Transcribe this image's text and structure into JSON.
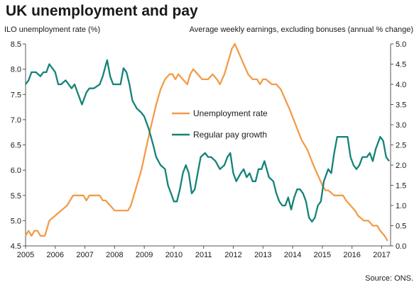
{
  "title": "UK unemployment and pay",
  "source": "Source: ONS.",
  "colors": {
    "unemployment": "#f29c4a",
    "pay": "#138378",
    "axis": "#555555"
  },
  "chart_data": {
    "type": "line",
    "title": "UK unemployment and pay",
    "left_axis": {
      "label": "ILO unemployment rate (%)",
      "range": [
        4.5,
        8.5
      ],
      "ticks": [
        "8.5",
        "8.0",
        "7.5",
        "7.0",
        "6.5",
        "6.0",
        "5.5",
        "5.0",
        "4.5"
      ]
    },
    "right_axis": {
      "label": "Average weekly earnings, excluding bonuses  (annual % change)",
      "range": [
        0.0,
        5.0
      ],
      "ticks": [
        "5.0",
        "4.5",
        "4.0",
        "3.5",
        "3.0",
        "2.5",
        "2.0",
        "1.5",
        "1.0",
        "0.5",
        "0.0"
      ]
    },
    "x_axis": {
      "range": [
        2005,
        2017.3
      ],
      "ticks": [
        "2005",
        "2006",
        "2007",
        "2008",
        "2009",
        "2010",
        "2011",
        "2012",
        "2013",
        "2014",
        "2015",
        "2016",
        "2017"
      ]
    },
    "legend": {
      "placement": "center",
      "entries": [
        "Unemployment rate",
        "Regular pay growth"
      ]
    },
    "grid": false,
    "series": [
      {
        "name": "Unemployment rate",
        "axis": "left",
        "points": [
          [
            2005.0,
            4.7
          ],
          [
            2005.1,
            4.8
          ],
          [
            2005.2,
            4.7
          ],
          [
            2005.3,
            4.8
          ],
          [
            2005.4,
            4.8
          ],
          [
            2005.5,
            4.7
          ],
          [
            2005.65,
            4.7
          ],
          [
            2005.8,
            5.0
          ],
          [
            2006.0,
            5.1
          ],
          [
            2006.2,
            5.2
          ],
          [
            2006.4,
            5.3
          ],
          [
            2006.6,
            5.5
          ],
          [
            2006.8,
            5.5
          ],
          [
            2006.95,
            5.5
          ],
          [
            2007.05,
            5.4
          ],
          [
            2007.15,
            5.5
          ],
          [
            2007.5,
            5.5
          ],
          [
            2007.6,
            5.4
          ],
          [
            2007.7,
            5.4
          ],
          [
            2007.85,
            5.3
          ],
          [
            2008.0,
            5.2
          ],
          [
            2008.3,
            5.2
          ],
          [
            2008.45,
            5.2
          ],
          [
            2008.55,
            5.3
          ],
          [
            2008.7,
            5.6
          ],
          [
            2008.9,
            6.0
          ],
          [
            2009.05,
            6.4
          ],
          [
            2009.2,
            6.8
          ],
          [
            2009.4,
            7.3
          ],
          [
            2009.55,
            7.6
          ],
          [
            2009.7,
            7.8
          ],
          [
            2009.85,
            7.9
          ],
          [
            2009.95,
            7.9
          ],
          [
            2010.05,
            7.8
          ],
          [
            2010.15,
            7.9
          ],
          [
            2010.3,
            7.8
          ],
          [
            2010.45,
            7.7
          ],
          [
            2010.55,
            7.9
          ],
          [
            2010.65,
            8.0
          ],
          [
            2010.8,
            7.9
          ],
          [
            2010.95,
            7.8
          ],
          [
            2011.15,
            7.8
          ],
          [
            2011.3,
            7.9
          ],
          [
            2011.45,
            7.8
          ],
          [
            2011.55,
            7.7
          ],
          [
            2011.7,
            7.9
          ],
          [
            2011.85,
            8.2
          ],
          [
            2011.95,
            8.4
          ],
          [
            2012.05,
            8.5
          ],
          [
            2012.2,
            8.3
          ],
          [
            2012.35,
            8.1
          ],
          [
            2012.5,
            7.9
          ],
          [
            2012.65,
            7.8
          ],
          [
            2012.8,
            7.8
          ],
          [
            2012.9,
            7.7
          ],
          [
            2013.0,
            7.8
          ],
          [
            2013.1,
            7.8
          ],
          [
            2013.3,
            7.7
          ],
          [
            2013.45,
            7.7
          ],
          [
            2013.6,
            7.6
          ],
          [
            2013.75,
            7.4
          ],
          [
            2013.9,
            7.2
          ],
          [
            2014.1,
            6.9
          ],
          [
            2014.3,
            6.6
          ],
          [
            2014.5,
            6.4
          ],
          [
            2014.7,
            6.1
          ],
          [
            2014.85,
            5.9
          ],
          [
            2015.0,
            5.7
          ],
          [
            2015.1,
            5.6
          ],
          [
            2015.2,
            5.6
          ],
          [
            2015.4,
            5.5
          ],
          [
            2015.55,
            5.5
          ],
          [
            2015.7,
            5.5
          ],
          [
            2015.8,
            5.4
          ],
          [
            2015.95,
            5.3
          ],
          [
            2016.1,
            5.2
          ],
          [
            2016.2,
            5.1
          ],
          [
            2016.4,
            5.0
          ],
          [
            2016.55,
            5.0
          ],
          [
            2016.7,
            4.9
          ],
          [
            2016.85,
            4.9
          ],
          [
            2016.95,
            4.8
          ],
          [
            2017.1,
            4.7
          ],
          [
            2017.2,
            4.6
          ]
        ]
      },
      {
        "name": "Regular pay growth",
        "axis": "right",
        "points": [
          [
            2005.0,
            4.0
          ],
          [
            2005.1,
            4.1
          ],
          [
            2005.2,
            4.3
          ],
          [
            2005.35,
            4.3
          ],
          [
            2005.5,
            4.2
          ],
          [
            2005.6,
            4.3
          ],
          [
            2005.7,
            4.3
          ],
          [
            2005.8,
            4.5
          ],
          [
            2005.9,
            4.4
          ],
          [
            2006.0,
            4.3
          ],
          [
            2006.1,
            4.0
          ],
          [
            2006.2,
            4.0
          ],
          [
            2006.35,
            4.1
          ],
          [
            2006.45,
            4.0
          ],
          [
            2006.55,
            3.9
          ],
          [
            2006.65,
            4.0
          ],
          [
            2006.75,
            3.8
          ],
          [
            2006.9,
            3.5
          ],
          [
            2007.05,
            3.8
          ],
          [
            2007.15,
            3.9
          ],
          [
            2007.3,
            3.9
          ],
          [
            2007.5,
            4.0
          ],
          [
            2007.6,
            4.2
          ],
          [
            2007.75,
            4.6
          ],
          [
            2007.85,
            4.2
          ],
          [
            2007.95,
            4.0
          ],
          [
            2008.1,
            4.0
          ],
          [
            2008.2,
            4.0
          ],
          [
            2008.3,
            4.4
          ],
          [
            2008.4,
            4.3
          ],
          [
            2008.5,
            4.0
          ],
          [
            2008.6,
            3.6
          ],
          [
            2008.75,
            3.4
          ],
          [
            2008.9,
            3.3
          ],
          [
            2009.0,
            3.2
          ],
          [
            2009.15,
            2.9
          ],
          [
            2009.3,
            2.5
          ],
          [
            2009.4,
            2.2
          ],
          [
            2009.55,
            2.0
          ],
          [
            2009.7,
            1.9
          ],
          [
            2009.8,
            1.5
          ],
          [
            2009.9,
            1.3
          ],
          [
            2010.0,
            1.1
          ],
          [
            2010.1,
            1.1
          ],
          [
            2010.2,
            1.4
          ],
          [
            2010.3,
            1.8
          ],
          [
            2010.4,
            2.0
          ],
          [
            2010.5,
            1.8
          ],
          [
            2010.6,
            1.3
          ],
          [
            2010.7,
            1.4
          ],
          [
            2010.8,
            1.8
          ],
          [
            2010.9,
            2.2
          ],
          [
            2011.05,
            2.3
          ],
          [
            2011.15,
            2.2
          ],
          [
            2011.25,
            2.2
          ],
          [
            2011.4,
            2.1
          ],
          [
            2011.55,
            1.9
          ],
          [
            2011.7,
            2.0
          ],
          [
            2011.8,
            2.2
          ],
          [
            2011.9,
            2.3
          ],
          [
            2012.0,
            1.8
          ],
          [
            2012.1,
            1.6
          ],
          [
            2012.25,
            1.8
          ],
          [
            2012.35,
            1.9
          ],
          [
            2012.45,
            1.7
          ],
          [
            2012.55,
            1.8
          ],
          [
            2012.65,
            1.6
          ],
          [
            2012.75,
            1.6
          ],
          [
            2012.85,
            1.9
          ],
          [
            2012.95,
            1.9
          ],
          [
            2013.05,
            2.1
          ],
          [
            2013.2,
            1.7
          ],
          [
            2013.35,
            1.6
          ],
          [
            2013.45,
            1.3
          ],
          [
            2013.55,
            1.1
          ],
          [
            2013.65,
            1.0
          ],
          [
            2013.75,
            1.0
          ],
          [
            2013.85,
            1.2
          ],
          [
            2013.95,
            0.9
          ],
          [
            2014.05,
            1.2
          ],
          [
            2014.15,
            1.4
          ],
          [
            2014.25,
            1.4
          ],
          [
            2014.35,
            1.3
          ],
          [
            2014.45,
            1.1
          ],
          [
            2014.55,
            0.7
          ],
          [
            2014.65,
            0.6
          ],
          [
            2014.75,
            0.7
          ],
          [
            2014.85,
            1.0
          ],
          [
            2014.95,
            1.1
          ],
          [
            2015.05,
            1.6
          ],
          [
            2015.2,
            1.9
          ],
          [
            2015.3,
            1.8
          ],
          [
            2015.4,
            2.3
          ],
          [
            2015.5,
            2.7
          ],
          [
            2015.6,
            2.7
          ],
          [
            2015.75,
            2.7
          ],
          [
            2015.85,
            2.7
          ],
          [
            2015.95,
            2.2
          ],
          [
            2016.05,
            2.0
          ],
          [
            2016.15,
            1.9
          ],
          [
            2016.25,
            2.0
          ],
          [
            2016.35,
            2.2
          ],
          [
            2016.5,
            2.2
          ],
          [
            2016.6,
            2.3
          ],
          [
            2016.7,
            2.1
          ],
          [
            2016.8,
            2.4
          ],
          [
            2016.9,
            2.6
          ],
          [
            2016.95,
            2.7
          ],
          [
            2017.05,
            2.6
          ],
          [
            2017.15,
            2.2
          ],
          [
            2017.25,
            2.1
          ]
        ]
      }
    ]
  }
}
